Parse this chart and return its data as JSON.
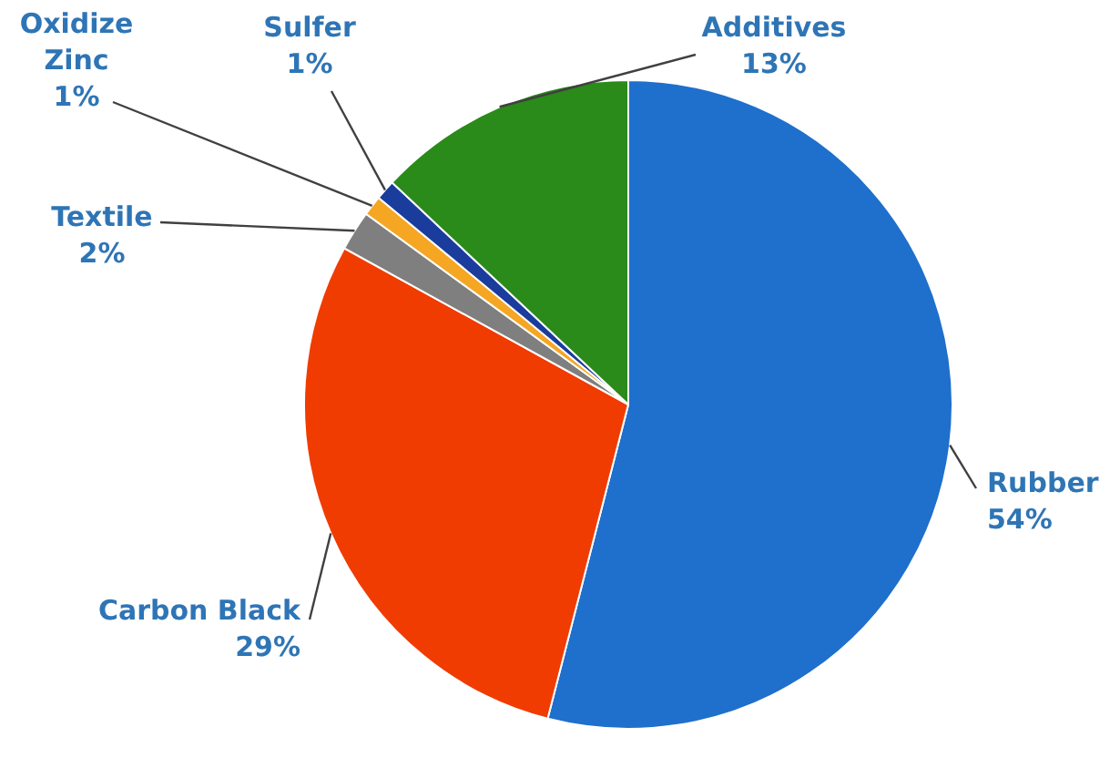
{
  "chart_data": {
    "type": "pie",
    "categories": [
      "Rubber",
      "Carbon Black",
      "Textile",
      "Oxidize Zinc",
      "Sulfer",
      "Additives"
    ],
    "values": [
      54,
      29,
      2,
      1,
      1,
      13
    ],
    "colors": [
      "#1f6fcc",
      "#f03c00",
      "#7f7f7f",
      "#f5a623",
      "#1a3c9c",
      "#2a8a1a"
    ],
    "value_labels": [
      "54%",
      "29%",
      "2%",
      "1%",
      "1%",
      "13%"
    ]
  }
}
